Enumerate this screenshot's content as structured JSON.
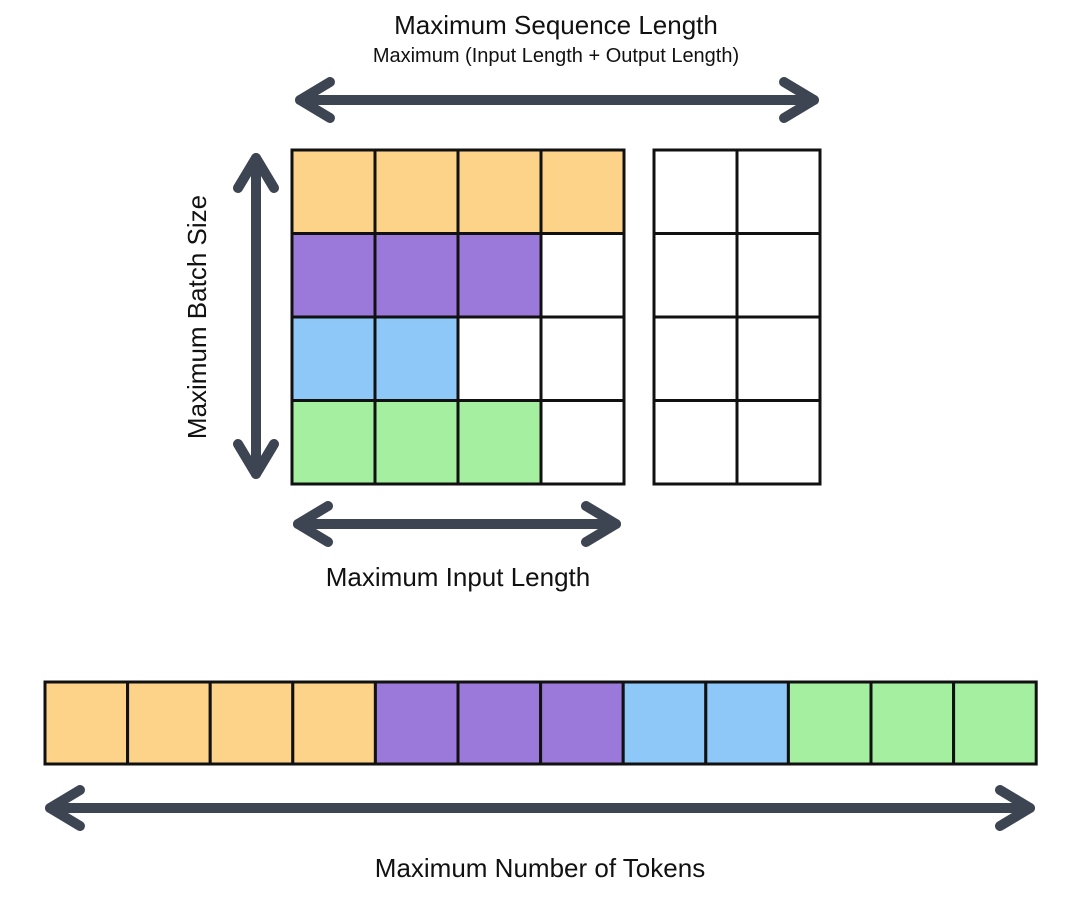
{
  "labels": {
    "sequence_title": "Maximum Sequence Length",
    "sequence_subtitle": "Maximum (Input Length + Output Length)",
    "batch_size": "Maximum Batch Size",
    "input_length": "Maximum Input Length",
    "num_tokens": "Maximum Number of Tokens"
  },
  "colors": {
    "orange": "#FDD38A",
    "purple": "#9A79DB",
    "blue": "#8EC8F8",
    "green": "#A4EFA0",
    "empty": "#FFFFFF",
    "grid_line": "#111111",
    "arrow": "#3D4452"
  },
  "input_grid": {
    "rows": [
      [
        "orange",
        "orange",
        "orange",
        "orange"
      ],
      [
        "purple",
        "purple",
        "purple",
        "empty"
      ],
      [
        "blue",
        "blue",
        "empty",
        "empty"
      ],
      [
        "green",
        "green",
        "green",
        "empty"
      ]
    ]
  },
  "output_grid": {
    "rows": [
      [
        "empty",
        "empty"
      ],
      [
        "empty",
        "empty"
      ],
      [
        "empty",
        "empty"
      ],
      [
        "empty",
        "empty"
      ]
    ]
  },
  "token_strip": {
    "cells": [
      "orange",
      "orange",
      "orange",
      "orange",
      "purple",
      "purple",
      "purple",
      "blue",
      "blue",
      "green",
      "green",
      "green"
    ]
  }
}
